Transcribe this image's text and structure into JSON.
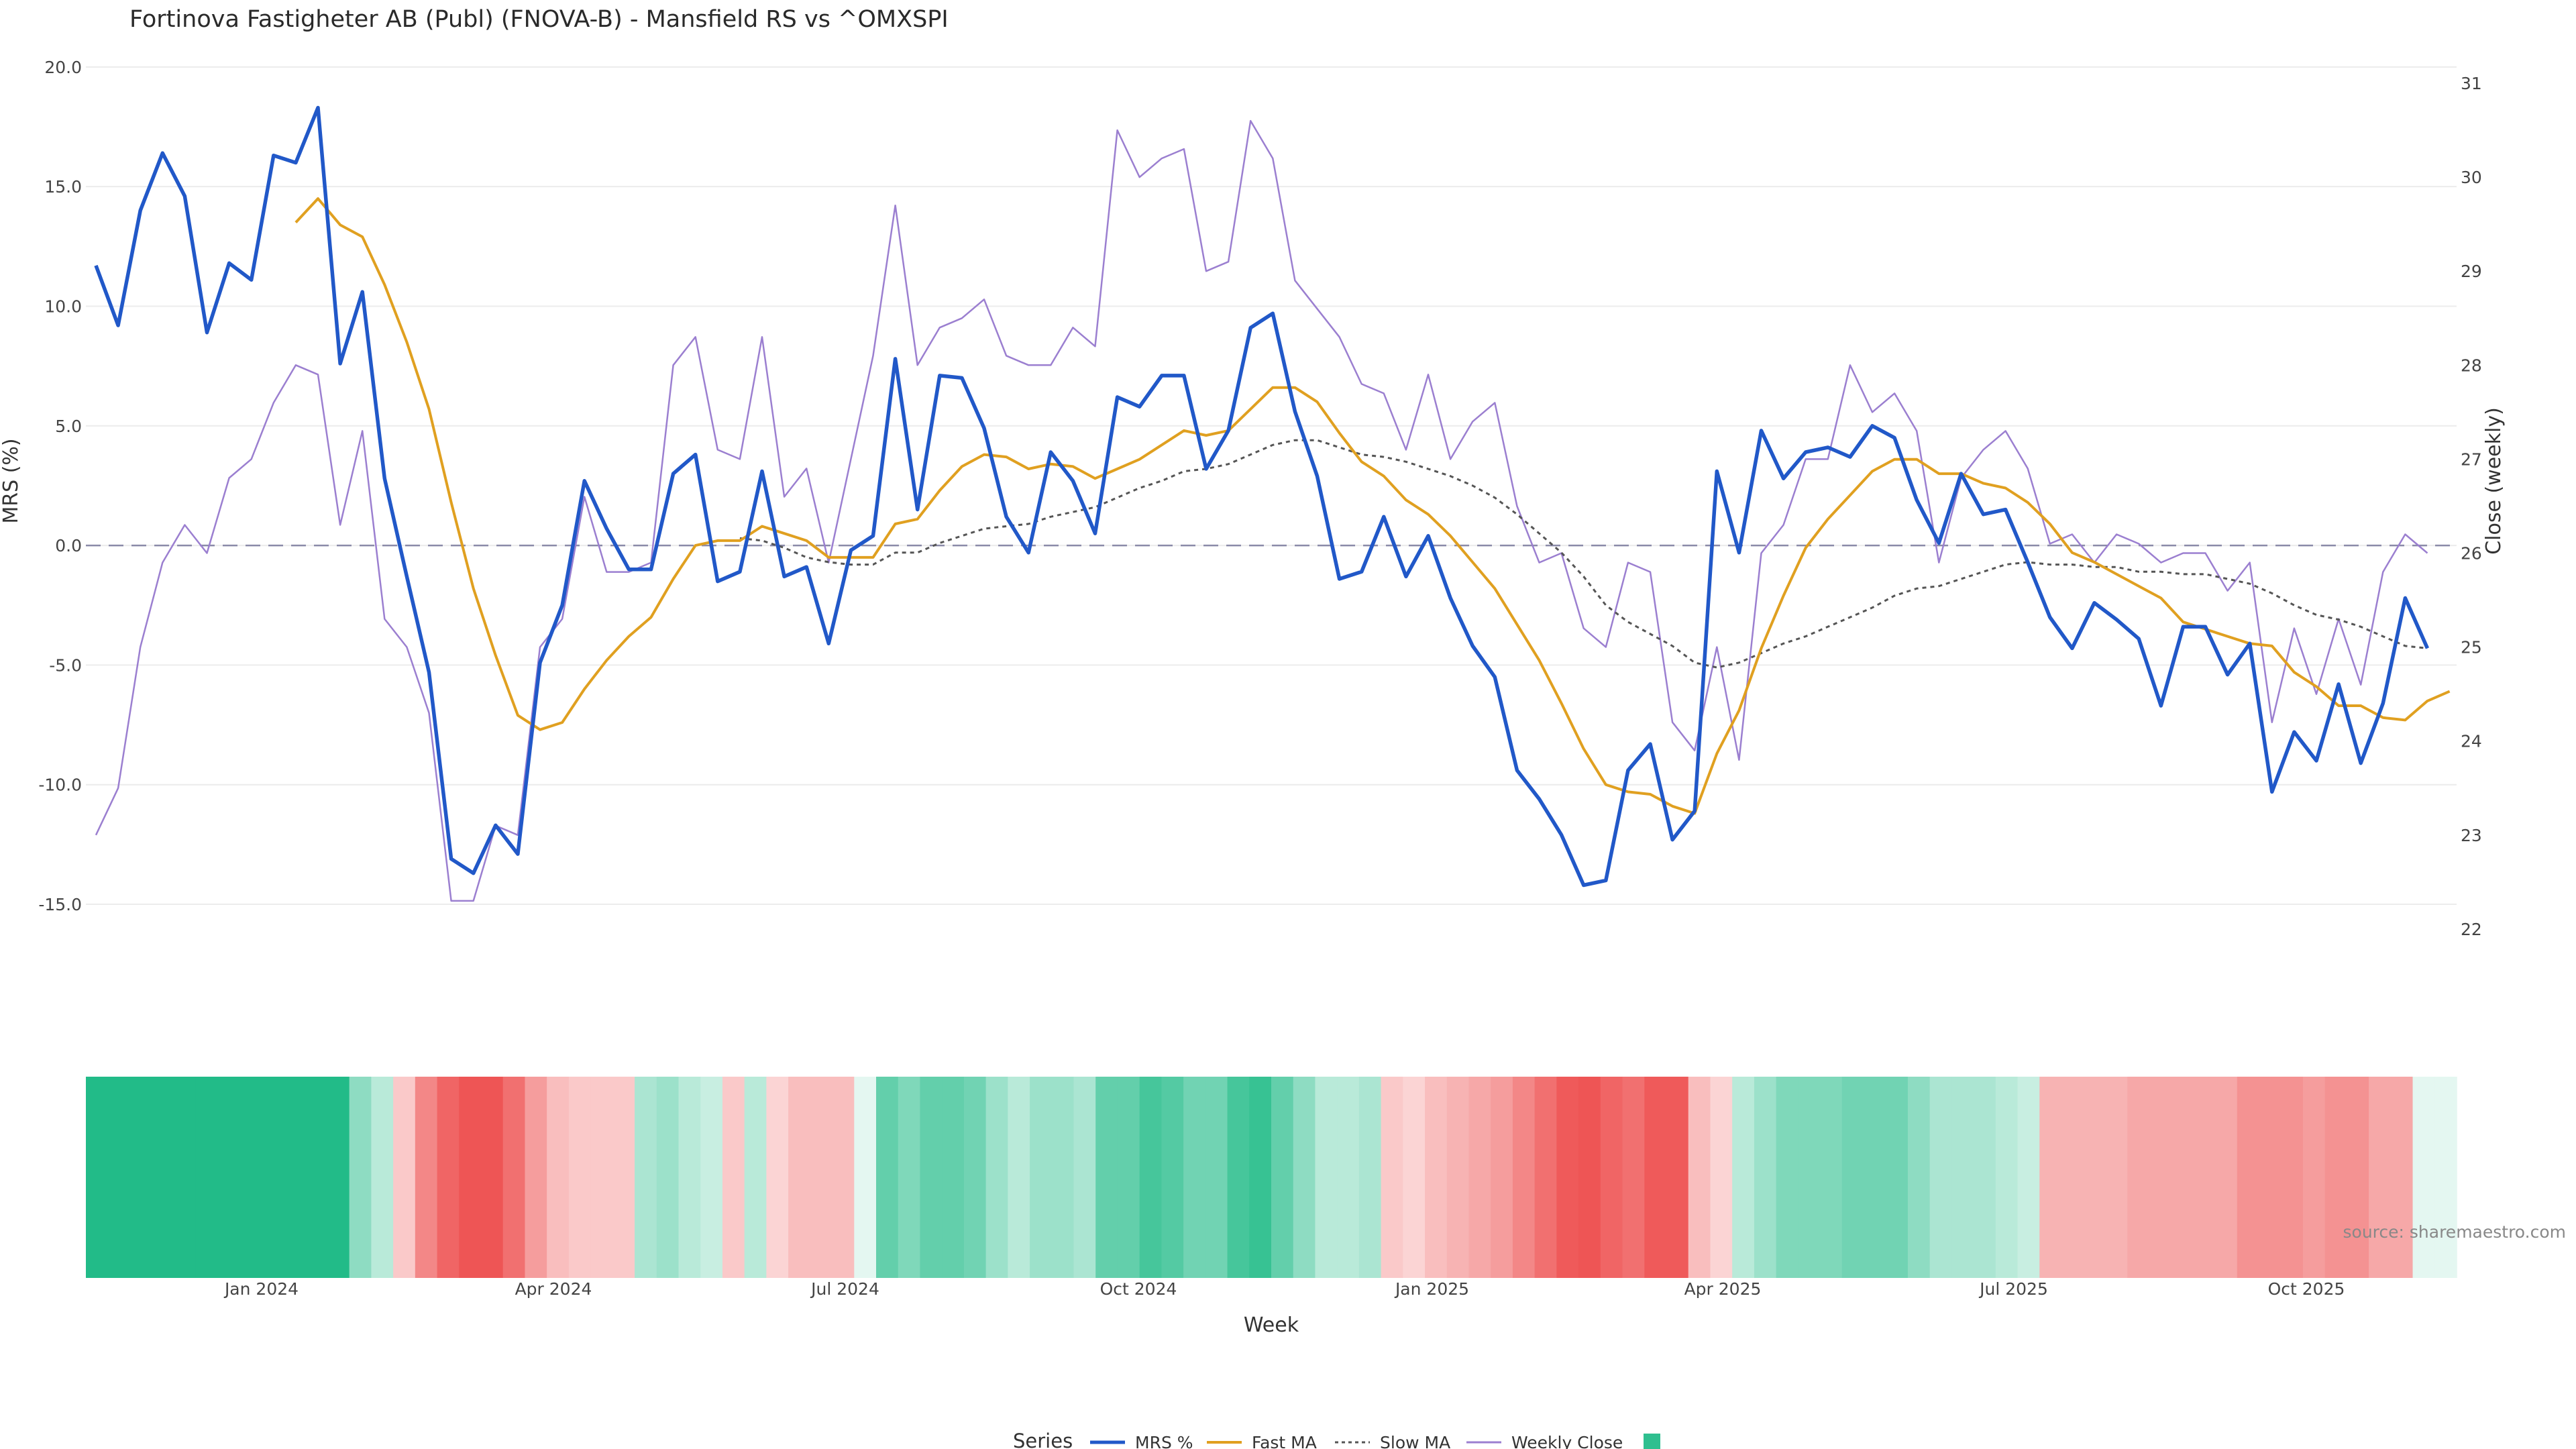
{
  "chart_data": {
    "type": "line",
    "title": "Fortinova Fastigheter AB (Publ) (FNOVA-B) - Mansfield RS vs ^OMXSPI",
    "xlabel": "Week",
    "ylabel": "MRS (%)",
    "y2label": "Close (weekly)",
    "ylim": [
      -18,
      20.5
    ],
    "y2lim": [
      21.5,
      31.3
    ],
    "yticks": [
      "20.0",
      "15.0",
      "10.0",
      "5.0",
      "0.0",
      "-5.0",
      "-10.0",
      "-15.0"
    ],
    "y2ticks": [
      "31",
      "30",
      "29",
      "28",
      "27",
      "26",
      "25",
      "24",
      "23",
      "22"
    ],
    "xticks": [
      "Jan 2024",
      "Apr 2024",
      "Jul 2024",
      "Oct 2024",
      "Jan 2025",
      "Apr 2025",
      "Jul 2025",
      "Oct 2025"
    ],
    "week_count": 108,
    "zero_line": 0,
    "legend_title": "Series",
    "legend_position": "bottom",
    "source": "source: sharemaestro.com",
    "colors": {
      "mrs": "#2158c8",
      "fast": "#e0a020",
      "slow": "#555555",
      "close": "#9b7fd0",
      "positive": "#22bb88",
      "negative": "#ee5555"
    },
    "series": [
      {
        "name": "MRS %",
        "key": "mrs",
        "axis": "left",
        "values": [
          11.7,
          9.2,
          14,
          16.4,
          14.6,
          8.9,
          11.8,
          11.1,
          16.3,
          16,
          18.3,
          7.6,
          10.6,
          2.8,
          -1.3,
          -5.3,
          -13.1,
          -13.7,
          -11.7,
          -12.9,
          -4.9,
          -2.5,
          2.7,
          0.7,
          -1,
          -1,
          3,
          3.8,
          -1.5,
          -1.1,
          3.1,
          -1.3,
          -0.9,
          -4.1,
          -0.2,
          0.4,
          7.8,
          1.5,
          7.1,
          7,
          4.9,
          1.2,
          -0.3,
          3.9,
          2.7,
          0.5,
          6.2,
          5.8,
          7.1,
          7.1,
          3.2,
          4.8,
          9.1,
          9.7,
          5.6,
          2.9,
          -1.4,
          -1.1,
          1.2,
          -1.3,
          0.4,
          -2.2,
          -4.2,
          -5.5,
          -9.4,
          -10.6,
          -12.1,
          -14.2,
          -14,
          -9.4,
          -8.3,
          -12.3,
          -11.1,
          3.1,
          -0.3,
          4.8,
          2.8,
          3.9,
          4.1,
          3.7,
          5,
          4.5,
          1.9,
          0.1,
          3,
          1.3,
          1.5,
          -0.7,
          -3,
          -4.3,
          -2.4,
          -3.1,
          -3.9,
          -6.7,
          -3.4,
          -3.4,
          -5.4,
          -4.1,
          -10.3,
          -7.8,
          -9,
          -5.8,
          -9.1,
          -6.6,
          -2.2,
          -4.3
        ]
      },
      {
        "name": "Fast MA",
        "key": "fast",
        "axis": "left",
        "values": [
          null,
          null,
          null,
          null,
          null,
          null,
          null,
          null,
          null,
          13.5,
          14.5,
          13.4,
          12.9,
          10.9,
          8.5,
          5.7,
          1.8,
          -1.8,
          -4.6,
          -7.1,
          -7.7,
          -7.4,
          -6,
          -4.8,
          -3.8,
          -3,
          -1.4,
          0,
          0.2,
          0.2,
          0.8,
          0.5,
          0.2,
          -0.5,
          -0.5,
          -0.5,
          0.9,
          1.1,
          2.3,
          3.3,
          3.8,
          3.7,
          3.2,
          3.4,
          3.3,
          2.8,
          3.2,
          3.6,
          4.2,
          4.8,
          4.6,
          4.8,
          5.7,
          6.6,
          6.6,
          6,
          4.7,
          3.5,
          2.9,
          1.9,
          1.3,
          0.4,
          -0.7,
          -1.8,
          -3.3,
          -4.8,
          -6.6,
          -8.5,
          -10,
          -10.3,
          -10.4,
          -10.9,
          -11.2,
          -8.7,
          -6.9,
          -4.3,
          -2.1,
          -0.1,
          1.1,
          2.1,
          3.1,
          3.6,
          3.6,
          3,
          3,
          2.6,
          2.4,
          1.8,
          0.9,
          -0.3,
          -0.7,
          -1.2,
          -1.7,
          -2.2,
          -3.2,
          -3.5,
          -3.8,
          -4.1,
          -4.2,
          -5.3,
          -5.9,
          -6.7,
          -6.7,
          -7.2,
          -7.3,
          -6.5,
          -6.1
        ]
      },
      {
        "name": "Slow MA",
        "key": "slow",
        "axis": "left",
        "values": [
          null,
          null,
          null,
          null,
          null,
          null,
          null,
          null,
          null,
          null,
          null,
          null,
          null,
          null,
          null,
          null,
          null,
          null,
          null,
          null,
          null,
          null,
          null,
          null,
          null,
          null,
          null,
          null,
          null,
          0.3,
          0.2,
          -0.1,
          -0.5,
          -0.7,
          -0.8,
          -0.8,
          -0.3,
          -0.3,
          0.1,
          0.4,
          0.7,
          0.8,
          0.9,
          1.2,
          1.4,
          1.6,
          2,
          2.4,
          2.7,
          3.1,
          3.2,
          3.4,
          3.8,
          4.2,
          4.4,
          4.4,
          4.1,
          3.8,
          3.7,
          3.5,
          3.2,
          2.9,
          2.5,
          2,
          1.3,
          0.5,
          -0.3,
          -1.3,
          -2.5,
          -3.2,
          -3.7,
          -4.2,
          -4.9,
          -5.1,
          -4.9,
          -4.5,
          -4.1,
          -3.8,
          -3.4,
          -3,
          -2.6,
          -2.1,
          -1.8,
          -1.7,
          -1.4,
          -1.1,
          -0.8,
          -0.7,
          -0.8,
          -0.8,
          -0.9,
          -0.9,
          -1.1,
          -1.1,
          -1.2,
          -1.2,
          -1.4,
          -1.6,
          -2,
          -2.5,
          -2.9,
          -3.1,
          -3.4,
          -3.8,
          -4.2,
          -4.3
        ]
      },
      {
        "name": "Weekly Close",
        "key": "close",
        "axis": "right",
        "values": [
          23,
          23.5,
          25,
          25.9,
          26.3,
          26,
          26.8,
          27,
          27.6,
          28,
          27.9,
          26.3,
          27.3,
          25.3,
          25,
          24.3,
          22.3,
          22.3,
          23.1,
          23,
          25,
          25.3,
          26.6,
          25.8,
          25.8,
          25.9,
          28,
          28.3,
          27.1,
          27,
          28.3,
          26.6,
          26.9,
          25.9,
          27,
          28.1,
          29.7,
          28,
          28.4,
          28.5,
          28.7,
          28.1,
          28,
          28,
          28.4,
          28.2,
          30.5,
          30,
          30.2,
          30.3,
          29,
          29.1,
          30.6,
          30.2,
          28.9,
          28.6,
          28.3,
          27.8,
          27.7,
          27.1,
          27.9,
          27,
          27.4,
          27.6,
          26.5,
          25.9,
          26,
          25.2,
          25,
          25.9,
          25.8,
          24.2,
          23.9,
          25,
          23.8,
          26,
          26.3,
          27,
          27,
          28,
          27.5,
          27.7,
          27.3,
          25.9,
          26.8,
          27.1,
          27.3,
          26.9,
          26.1,
          26.2,
          25.9,
          26.2,
          26.1,
          25.9,
          26,
          26,
          25.6,
          25.9,
          24.2,
          25.2,
          24.5,
          25.3,
          24.6,
          25.8,
          26.2,
          26
        ]
      }
    ],
    "heat_band": {
      "values": [
        20,
        17,
        20,
        20,
        19,
        17,
        17,
        17,
        20,
        20,
        20,
        18,
        6,
        3,
        -3,
        -9,
        -12,
        -14,
        -14,
        -11,
        -7,
        -4,
        -3,
        -3,
        -3,
        4,
        5,
        3,
        2,
        -3,
        3,
        -2,
        -4,
        -4,
        -4,
        0,
        9,
        7,
        9,
        9,
        8,
        5,
        3,
        5,
        5,
        4,
        9,
        9,
        11,
        10,
        8,
        8,
        11,
        12,
        9,
        6,
        3,
        3,
        4,
        -3,
        -2,
        -4,
        -5,
        -6,
        -7,
        -9,
        -11,
        -13,
        -14,
        -12,
        -11,
        -13,
        -13,
        -4,
        -2,
        3,
        5,
        7,
        7,
        7,
        8,
        8,
        8,
        6,
        4,
        4,
        4,
        3,
        2,
        -5,
        -5,
        -5,
        -5,
        -6,
        -6,
        -6,
        -6,
        -6,
        -8,
        -8,
        -8,
        -7,
        -8,
        -8,
        -6,
        -6
      ]
    }
  }
}
